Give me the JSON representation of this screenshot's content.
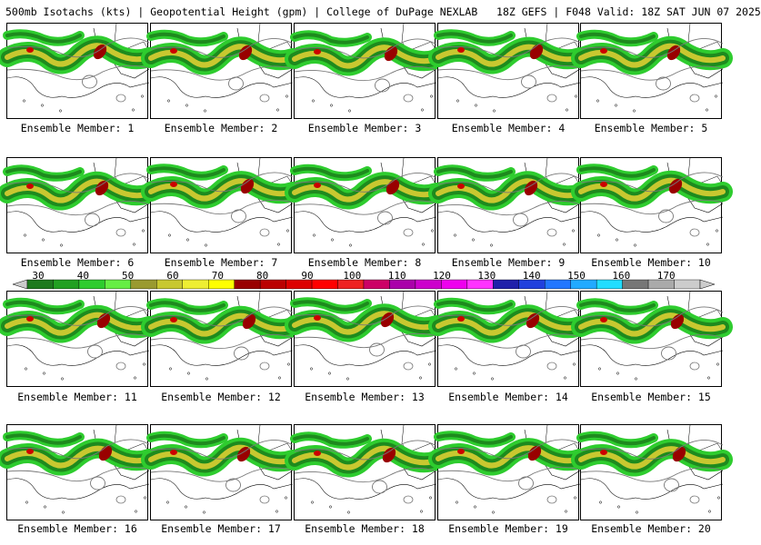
{
  "header": {
    "title": "500mb Isotachs (kts) | Geopotential Height (gpm) | College of DuPage NEXLAB   18Z GEFS | F048 Valid: 18Z SAT JUN 07 2025"
  },
  "members": [
    "Ensemble Member: 1",
    "Ensemble Member: 2",
    "Ensemble Member: 3",
    "Ensemble Member: 4",
    "Ensemble Member: 5",
    "Ensemble Member: 6",
    "Ensemble Member: 7",
    "Ensemble Member: 8",
    "Ensemble Member: 9",
    "Ensemble Member: 10",
    "Ensemble Member: 11",
    "Ensemble Member: 12",
    "Ensemble Member: 13",
    "Ensemble Member: 14",
    "Ensemble Member: 15",
    "Ensemble Member: 16",
    "Ensemble Member: 17",
    "Ensemble Member: 18",
    "Ensemble Member: 19",
    "Ensemble Member: 20"
  ],
  "colorbar": {
    "labels": [
      "30",
      "40",
      "50",
      "60",
      "70",
      "80",
      "90",
      "100",
      "110",
      "120",
      "130",
      "140",
      "150",
      "160",
      "170"
    ],
    "colors": [
      "#1e7a1e",
      "#22a022",
      "#2ecc2e",
      "#66ee44",
      "#9a9a30",
      "#c8c830",
      "#eeee33",
      "#ffff00",
      "#990000",
      "#bb0000",
      "#dd0000",
      "#ff0000",
      "#ee2222",
      "#cc0066",
      "#aa00aa",
      "#cc00cc",
      "#ee00ee",
      "#ff33ff",
      "#2020aa",
      "#2040dd",
      "#2277ff",
      "#22aaff",
      "#22ddff",
      "#777777",
      "#aaaaaa",
      "#cccccc"
    ]
  },
  "map_colors": {
    "isotach_light": "#2ecc2e",
    "isotach_dark": "#1e8a1e",
    "isotach_mid": "#c8c830",
    "isotach_core": "#990000",
    "height_contour": "#777777"
  }
}
